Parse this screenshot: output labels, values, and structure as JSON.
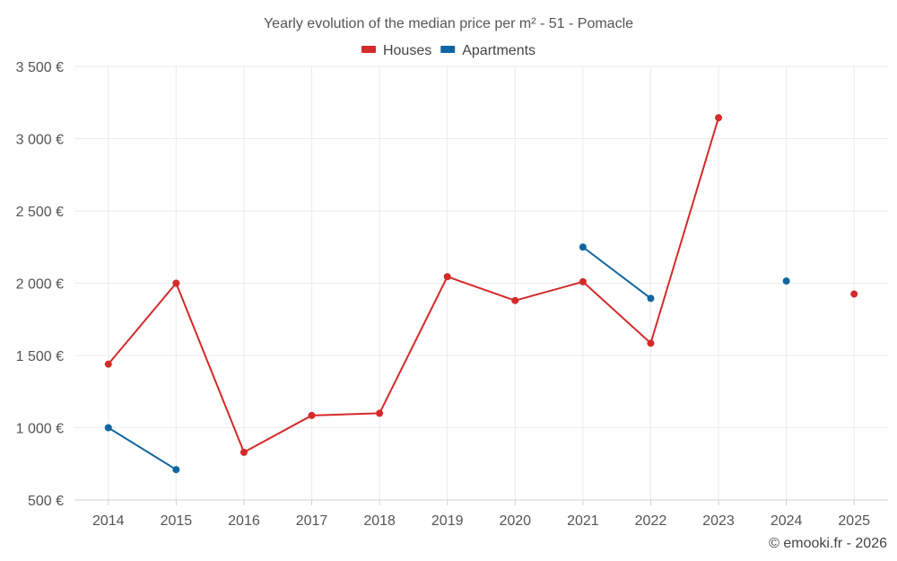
{
  "chart_data": {
    "type": "line",
    "title": "Yearly evolution of the median price per m² - 51 - Pomacle",
    "categories": [
      "2014",
      "2015",
      "2016",
      "2017",
      "2018",
      "2019",
      "2020",
      "2021",
      "2022",
      "2023",
      "2024",
      "2025"
    ],
    "y_tick_labels": [
      "500 €",
      "1 000 €",
      "1 500 €",
      "2 000 €",
      "2 500 €",
      "3 000 €",
      "3 500 €"
    ],
    "y_ticks": [
      500,
      1000,
      1500,
      2000,
      2500,
      3000,
      3500
    ],
    "ylim": [
      500,
      3500
    ],
    "grid": true,
    "legend_position": "top-center",
    "series": [
      {
        "name": "Houses",
        "color": "#d42a2a",
        "values": [
          1440,
          2000,
          830,
          1085,
          1100,
          2045,
          1880,
          2010,
          1585,
          3145,
          null,
          1925
        ]
      },
      {
        "name": "Apartments",
        "color": "#1066a0",
        "values": [
          1000,
          710,
          null,
          null,
          null,
          null,
          null,
          2250,
          1895,
          null,
          2015,
          null
        ]
      }
    ]
  },
  "credit": "© emooki.fr - 2026"
}
